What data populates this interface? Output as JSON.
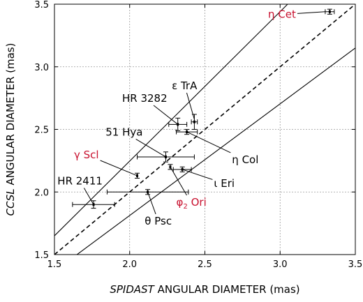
{
  "chart_data": {
    "type": "scatter",
    "title": "",
    "xlabel_italic": "SPIDAST",
    "xlabel_rest": " ANGULAR DIAMETER (mas)",
    "ylabel_italic": "CCSL",
    "ylabel_rest": " ANGULAR DIAMETER (mas)",
    "xlim": [
      1.5,
      3.5
    ],
    "ylim": [
      1.5,
      3.5
    ],
    "x_ticks": [
      "1.5",
      "2.0",
      "2.5",
      "3.0",
      "3.5"
    ],
    "y_ticks": [
      "1.5",
      "2.0",
      "2.5",
      "3.0",
      "3.5"
    ],
    "grid": true,
    "reference_lines": [
      {
        "style": "dashed",
        "description": "y = x",
        "x": [
          1.5,
          3.5
        ],
        "y": [
          1.5,
          3.5
        ]
      },
      {
        "style": "solid",
        "x": [
          1.5,
          3.05
        ],
        "y": [
          1.65,
          3.5
        ]
      },
      {
        "style": "solid",
        "x": [
          1.65,
          3.5
        ],
        "y": [
          1.5,
          3.15
        ]
      }
    ],
    "points": [
      {
        "name": "η Cet",
        "x": 3.33,
        "y": 3.44,
        "xerr": 0.03,
        "yerr": 0.02,
        "color": "#c8102e"
      },
      {
        "name": "ε TrA",
        "x": 2.43,
        "y": 2.56,
        "xerr": 0.02,
        "yerr": 0.06,
        "color": "#000000"
      },
      {
        "name": "HR 3282",
        "x": 2.32,
        "y": 2.54,
        "xerr": 0.06,
        "yerr": 0.05,
        "color": "#000000"
      },
      {
        "name": "η Col",
        "x": 2.38,
        "y": 2.48,
        "xerr": 0.07,
        "yerr": 0.02,
        "color": "#000000"
      },
      {
        "name": "51 Hya",
        "x": 2.24,
        "y": 2.28,
        "xerr": 0.19,
        "yerr": 0.04,
        "color": "#000000"
      },
      {
        "name": "ι Eri",
        "x": 2.35,
        "y": 2.18,
        "xerr": 0.06,
        "yerr": 0.02,
        "color": "#000000"
      },
      {
        "name": "φ2 Ori",
        "x": 2.27,
        "y": 2.2,
        "xerr": 0.0,
        "yerr": 0.02,
        "color": "#c8102e"
      },
      {
        "name": "γ Scl",
        "x": 2.05,
        "y": 2.13,
        "xerr": 0.0,
        "yerr": 0.02,
        "color": "#c8102e"
      },
      {
        "name": "θ Psc",
        "x": 2.12,
        "y": 2.0,
        "xerr": 0.27,
        "yerr": 0.02,
        "color": "#000000"
      },
      {
        "name": "HR 2411",
        "x": 1.76,
        "y": 1.9,
        "xerr": 0.14,
        "yerr": 0.03,
        "color": "#000000"
      }
    ],
    "labels": [
      {
        "point": "η Cet",
        "greek": "η",
        "text": "Cet",
        "sub": "",
        "tx": 2.92,
        "ty": 3.39,
        "line_end": [
          3.3,
          3.44
        ],
        "color": "#c8102e"
      },
      {
        "point": "ε TrA",
        "greek": "ε",
        "text": "TrA",
        "sub": "",
        "tx": 2.28,
        "ty": 2.82,
        "line_end": [
          2.43,
          2.58
        ],
        "color": "#000000"
      },
      {
        "point": "HR 3282",
        "greek": "",
        "text": "HR 3282",
        "sub": "",
        "tx": 1.95,
        "ty": 2.72,
        "line_end": [
          2.32,
          2.54
        ],
        "color": "#000000"
      },
      {
        "point": "η Col",
        "greek": "η",
        "text": "Col",
        "sub": "",
        "tx": 2.68,
        "ty": 2.23,
        "line_end": [
          2.38,
          2.48
        ],
        "color": "#000000"
      },
      {
        "point": "51 Hya",
        "greek": "",
        "text": "51 Hya",
        "sub": "",
        "tx": 1.84,
        "ty": 2.45,
        "line_end": [
          2.24,
          2.28
        ],
        "color": "#000000"
      },
      {
        "point": "ι Eri",
        "greek": "ι",
        "text": "Eri",
        "sub": "",
        "tx": 2.56,
        "ty": 2.04,
        "line_end": [
          2.35,
          2.18
        ],
        "color": "#000000"
      },
      {
        "point": "φ2 Ori",
        "greek": "φ",
        "text": "Ori",
        "sub": "2",
        "tx": 2.31,
        "ty": 1.89,
        "line_end": [
          2.27,
          2.2
        ],
        "color": "#c8102e"
      },
      {
        "point": "γ Scl",
        "greek": "γ",
        "text": "Scl",
        "sub": "",
        "tx": 1.63,
        "ty": 2.27,
        "line_end": [
          2.05,
          2.13
        ],
        "color": "#c8102e"
      },
      {
        "point": "θ Psc",
        "greek": "θ",
        "text": "Psc",
        "sub": "",
        "tx": 2.1,
        "ty": 1.74,
        "line_end": [
          2.12,
          2.0
        ],
        "color": "#000000"
      },
      {
        "point": "HR 2411",
        "greek": "",
        "text": "HR 2411",
        "sub": "",
        "tx": 1.52,
        "ty": 2.06,
        "line_end": [
          1.76,
          1.9
        ],
        "color": "#000000"
      }
    ]
  }
}
